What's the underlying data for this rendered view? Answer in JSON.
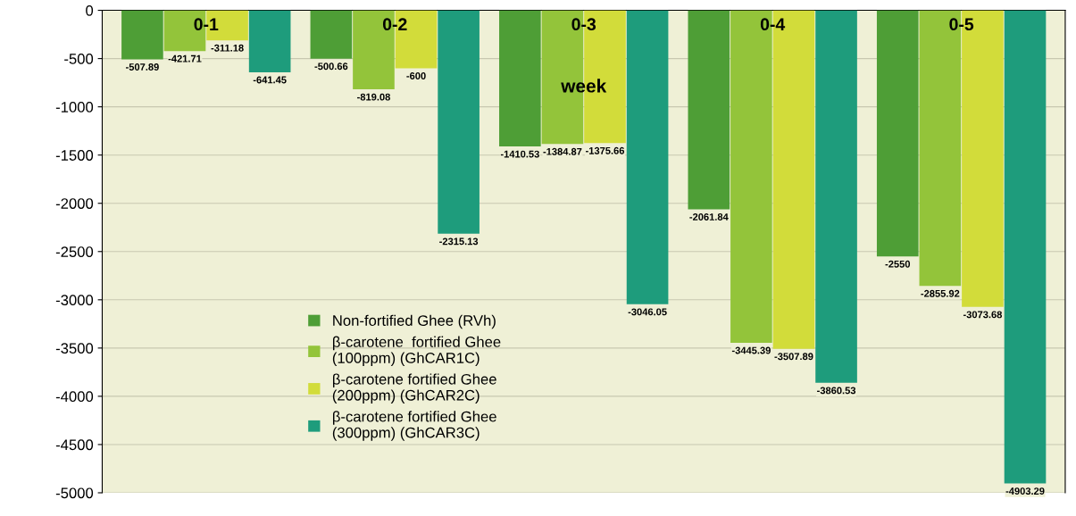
{
  "chart_data": {
    "type": "bar",
    "categories": [
      "0-1",
      "0-2",
      "0-3",
      "0-4",
      "0-5"
    ],
    "series": [
      {
        "name": "Non-fortified Ghee (RVh)",
        "color": "#4e9e36",
        "values": [
          -507.89,
          -500.66,
          -1410.53,
          -2061.84,
          -2550
        ]
      },
      {
        "name": "β-carotene  fortified Ghee\n(100ppm) (GhCAR1C)",
        "color": "#93c43a",
        "values": [
          -421.71,
          -819.08,
          -1384.87,
          -3445.39,
          -2855.92
        ]
      },
      {
        "name": "β-carotene fortified Ghee\n(200ppm) (GhCAR2C)",
        "color": "#d2dc3a",
        "values": [
          -311.18,
          -600,
          -1375.66,
          -3507.89,
          -3073.68
        ]
      },
      {
        "name": "β-carotene fortified Ghee\n(300ppm) (GhCAR3C)",
        "color": "#1e9c7c",
        "values": [
          -641.45,
          -2315.13,
          -3046.05,
          -3860.53,
          -4903.29
        ]
      }
    ],
    "annotations": [
      {
        "text": "week",
        "x": "0-3",
        "y": -800
      }
    ],
    "ylim": [
      -5000,
      0
    ],
    "yticks": [
      0,
      -500,
      -1000,
      -1500,
      -2000,
      -2500,
      -3000,
      -3500,
      -4000,
      -4500,
      -5000
    ],
    "grid": "y",
    "legend": "lower left",
    "data_labels": true
  }
}
